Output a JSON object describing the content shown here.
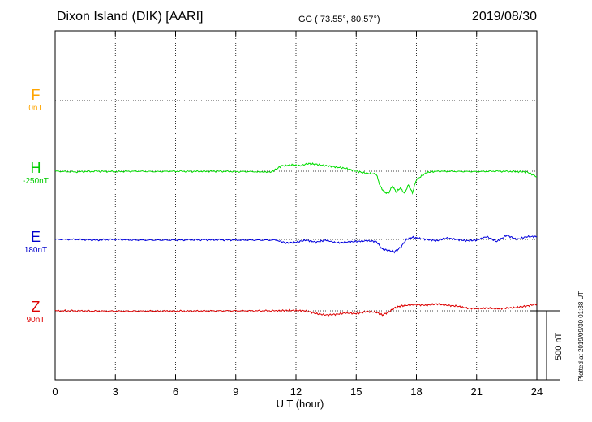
{
  "header": {
    "station": "Dixon Island (DIK)  [AARI]",
    "coords": "GG ( 73.55°,  80.57°)",
    "date": "2019/08/30"
  },
  "footer": {
    "xlabel": "U T (hour)",
    "plotted": "Plotted at 2019/09/30 01:38 UT"
  },
  "components": [
    {
      "letter": "F",
      "base": "0nT",
      "color": "#ffa500"
    },
    {
      "letter": "H",
      "base": "-250nT",
      "color": "#00cc00"
    },
    {
      "letter": "E",
      "base": "180nT",
      "color": "#0000cc"
    },
    {
      "letter": "Z",
      "base": "90nT",
      "color": "#dd0000"
    }
  ],
  "scale_bar": {
    "label": "500 nT"
  },
  "chart_data": {
    "type": "line",
    "title": "Dixon Island (DIK)  [AARI]",
    "xlabel": "U T (hour)",
    "xlim": [
      0,
      24
    ],
    "xticks": [
      0,
      3,
      6,
      9,
      12,
      15,
      18,
      21,
      24
    ],
    "grid": true,
    "scale_nT": 500,
    "series": [
      {
        "name": "H",
        "color": "#00dd00",
        "base": "-250nT",
        "x": [
          0,
          1,
          2,
          3,
          4,
          5,
          6,
          7,
          8,
          9,
          10,
          10.8,
          11.3,
          11.8,
          12.2,
          12.6,
          13,
          13.5,
          14,
          14.5,
          15,
          15.5,
          16,
          16.2,
          16.4,
          16.6,
          16.8,
          17,
          17.2,
          17.4,
          17.6,
          17.8,
          18,
          18.5,
          19,
          20,
          21,
          22,
          23,
          23.5,
          24
        ],
        "y": [
          0,
          -5,
          0,
          -3,
          0,
          -3,
          0,
          -2,
          0,
          -3,
          -3,
          -3,
          40,
          45,
          40,
          55,
          50,
          40,
          30,
          20,
          0,
          -15,
          -20,
          -110,
          -150,
          -160,
          -110,
          -150,
          -120,
          -160,
          -100,
          -155,
          -60,
          -10,
          0,
          -2,
          -3,
          0,
          -3,
          -5,
          -40
        ]
      },
      {
        "name": "E",
        "color": "#0000dd",
        "base": "180nT",
        "x": [
          0,
          1,
          2,
          3,
          4,
          5,
          6,
          7,
          8,
          9,
          10,
          11,
          11.5,
          12,
          12.5,
          13,
          13.5,
          14,
          14.5,
          15,
          15.5,
          16,
          16.3,
          16.6,
          16.9,
          17.2,
          17.5,
          17.8,
          18,
          18.5,
          19,
          19.5,
          20,
          20.5,
          21,
          21.5,
          22,
          22.5,
          23,
          23.5,
          24
        ],
        "y": [
          0,
          0,
          -5,
          0,
          -5,
          -5,
          -5,
          -3,
          -3,
          -5,
          -5,
          -5,
          -25,
          -20,
          -5,
          -20,
          -5,
          -25,
          -20,
          -15,
          -10,
          -15,
          -70,
          -80,
          -90,
          -60,
          0,
          15,
          10,
          0,
          -10,
          10,
          0,
          -10,
          -5,
          20,
          -15,
          30,
          0,
          20,
          20
        ]
      },
      {
        "name": "Z",
        "color": "#dd0000",
        "base": "90nT",
        "x": [
          0,
          1,
          2,
          3,
          4,
          5,
          6,
          7,
          8,
          9,
          10,
          11,
          11.5,
          12,
          12.5,
          13,
          13.5,
          14,
          14.5,
          15,
          15.5,
          16,
          16.3,
          16.6,
          16.9,
          17.2,
          17.5,
          18,
          18.5,
          19,
          19.5,
          20,
          20.5,
          21,
          21.5,
          22,
          22.5,
          23,
          23.5,
          24
        ],
        "y": [
          0,
          0,
          -2,
          -2,
          -2,
          -2,
          -2,
          -1,
          0,
          0,
          0,
          0,
          3,
          2,
          0,
          -20,
          -30,
          -25,
          -15,
          -20,
          -5,
          -10,
          -30,
          -10,
          20,
          35,
          40,
          45,
          40,
          50,
          40,
          35,
          20,
          15,
          20,
          15,
          20,
          25,
          35,
          50
        ]
      },
      {
        "name": "F",
        "color": "#ffa500",
        "base": "0nT",
        "x": [],
        "y": []
      }
    ]
  }
}
